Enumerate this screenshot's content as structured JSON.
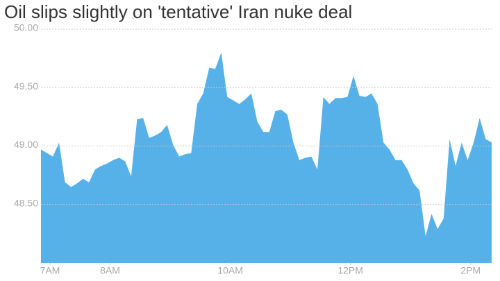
{
  "chart_data": {
    "type": "area",
    "title": "Oil slips slightly on 'tentative' Iran nuke deal",
    "x": [
      6.85,
      6.95,
      7.05,
      7.15,
      7.25,
      7.35,
      7.45,
      7.55,
      7.65,
      7.75,
      7.85,
      7.95,
      8.05,
      8.15,
      8.25,
      8.35,
      8.45,
      8.55,
      8.65,
      8.75,
      8.85,
      8.95,
      9.05,
      9.15,
      9.25,
      9.35,
      9.45,
      9.55,
      9.65,
      9.75,
      9.85,
      9.95,
      10.05,
      10.15,
      10.25,
      10.35,
      10.45,
      10.55,
      10.65,
      10.75,
      10.85,
      10.95,
      11.05,
      11.15,
      11.25,
      11.35,
      11.45,
      11.55,
      11.65,
      11.75,
      11.85,
      11.95,
      12.05,
      12.15,
      12.25,
      12.35,
      12.45,
      12.55,
      12.65,
      12.75,
      12.85,
      12.95,
      13.05,
      13.15,
      13.25,
      13.35,
      13.45,
      13.55,
      13.65,
      13.75,
      13.85,
      13.95,
      14.05,
      14.15,
      14.25,
      14.35
    ],
    "values": [
      48.97,
      48.94,
      48.91,
      49.03,
      48.69,
      48.65,
      48.68,
      48.72,
      48.69,
      48.8,
      48.83,
      48.85,
      48.88,
      48.9,
      48.87,
      48.74,
      49.23,
      49.24,
      49.07,
      49.09,
      49.12,
      49.18,
      49.01,
      48.91,
      48.93,
      48.94,
      49.36,
      49.45,
      49.67,
      49.66,
      49.8,
      49.42,
      49.39,
      49.36,
      49.4,
      49.45,
      49.21,
      49.12,
      49.12,
      49.3,
      49.31,
      49.27,
      49.03,
      48.88,
      48.9,
      48.91,
      48.8,
      49.42,
      49.36,
      49.41,
      49.41,
      49.42,
      49.6,
      49.43,
      49.42,
      49.45,
      49.36,
      49.03,
      48.97,
      48.88,
      48.88,
      48.8,
      48.68,
      48.62,
      48.23,
      48.42,
      48.29,
      48.38,
      49.06,
      48.83,
      49.03,
      48.88,
      49.03,
      49.24,
      49.06,
      49.03
    ],
    "color": "#56b1e9",
    "xlim": [
      6.85,
      14.35
    ],
    "xticks": [
      {
        "value": 7,
        "label": "7AM"
      },
      {
        "value": 8,
        "label": "8AM"
      },
      {
        "value": 10,
        "label": "10AM"
      },
      {
        "value": 12,
        "label": "12PM"
      },
      {
        "value": 14,
        "label": "2PM"
      }
    ],
    "ylim": [
      48,
      50
    ],
    "yticks": [
      {
        "value": 48.5,
        "label": "48.50"
      },
      {
        "value": 49,
        "label": "49.00"
      },
      {
        "value": 49.5,
        "label": "49.50"
      },
      {
        "value": 50,
        "label": "50.00"
      }
    ],
    "grid": true
  }
}
